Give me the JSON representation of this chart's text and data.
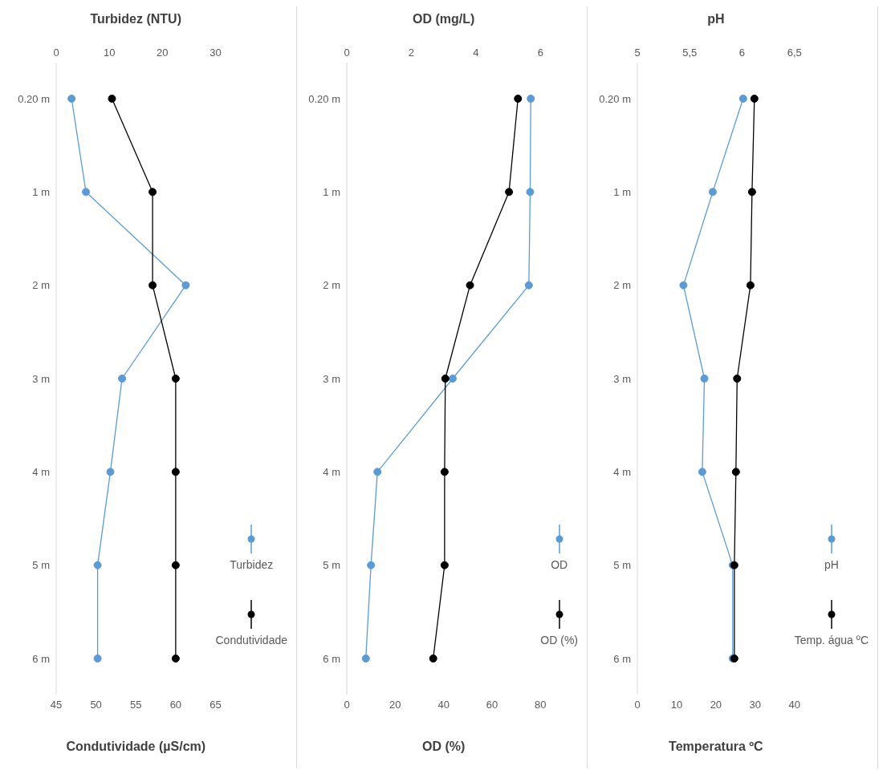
{
  "chart_data": [
    {
      "type": "line",
      "orientation": "horizontal",
      "categories": [
        "0.20 m",
        "1 m",
        "2 m",
        "3 m",
        "4 m",
        "5 m",
        "6 m"
      ],
      "x2label": "Turbidez (NTU)",
      "xlabel": "Condutividade (µS/cm)",
      "x2lim": [
        0,
        30
      ],
      "x2ticks": [
        0,
        10,
        20,
        30
      ],
      "xlim": [
        45,
        65
      ],
      "xticks": [
        45,
        50,
        55,
        60,
        65
      ],
      "marker": "circle",
      "line_style": "solid",
      "legend": "bottom right",
      "series": [
        {
          "name": "Turbidez",
          "color": "#5b9bd5",
          "axis": "x2",
          "values": [
            2.9,
            5.6,
            24.4,
            12.4,
            10.2,
            7.8,
            7.8
          ]
        },
        {
          "name": "Condutividade",
          "color": "#000000",
          "values": [
            52.0,
            57.1,
            57.1,
            60.0,
            60.0,
            60.0,
            60.0
          ]
        }
      ]
    },
    {
      "type": "line",
      "orientation": "horizontal",
      "categories": [
        "0.20 m",
        "1 m",
        "2 m",
        "3 m",
        "4 m",
        "5 m",
        "6 m"
      ],
      "x2label": "OD (mg/L)",
      "xlabel": "OD (%)",
      "x2lim": [
        0,
        6
      ],
      "x2ticks": [
        0,
        2,
        4,
        6
      ],
      "xlim": [
        0,
        80
      ],
      "xticks": [
        0,
        20,
        40,
        60,
        80
      ],
      "marker": "circle",
      "line_style": "solid",
      "legend": "bottom right",
      "series": [
        {
          "name": "OD",
          "color": "#5b9bd5",
          "axis": "x2",
          "values": [
            5.7,
            5.68,
            5.64,
            3.28,
            0.95,
            0.75,
            0.59
          ]
        },
        {
          "name": "OD (%)",
          "color": "#000000",
          "values": [
            70.7,
            67.0,
            50.9,
            40.7,
            40.4,
            40.4,
            35.7
          ]
        }
      ]
    },
    {
      "type": "line",
      "orientation": "horizontal",
      "categories": [
        "0.20 m",
        "1 m",
        "2 m",
        "3 m",
        "4 m",
        "5 m",
        "6 m"
      ],
      "x2label": "pH",
      "xlabel": "Temperatura ºC",
      "x2lim": [
        5,
        6.5
      ],
      "x2ticks": [
        5,
        {
          "value": 5.5,
          "label": "5,5"
        },
        6,
        {
          "value": 6.5,
          "label": "6,5"
        }
      ],
      "xlim": [
        0,
        40
      ],
      "xticks": [
        0,
        10,
        20,
        30,
        40
      ],
      "marker": "circle",
      "line_style": "solid",
      "legend": "bottom right",
      "series": [
        {
          "name": "pH",
          "color": "#5b9bd5",
          "axis": "x2",
          "values": [
            6.01,
            5.72,
            5.44,
            5.64,
            5.62,
            5.91,
            5.91
          ]
        },
        {
          "name": "Temp. água ºC",
          "color": "#000000",
          "values": [
            29.8,
            29.2,
            28.8,
            25.4,
            25.1,
            24.7,
            24.7
          ]
        }
      ]
    }
  ]
}
